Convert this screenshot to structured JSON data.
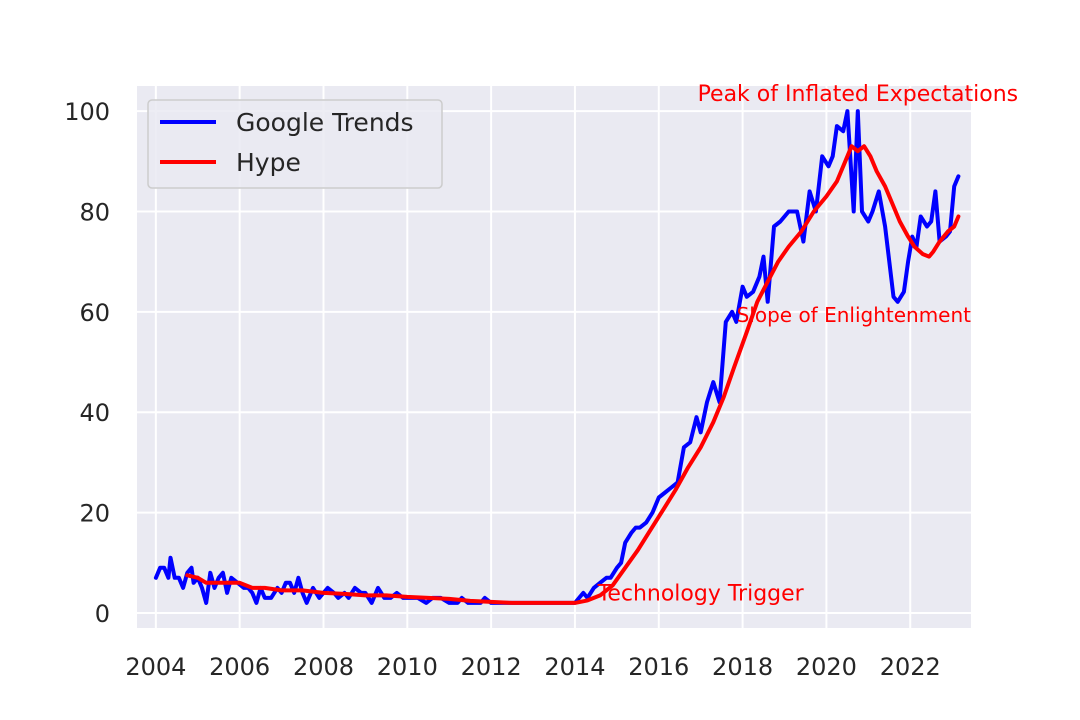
{
  "chart_data": {
    "type": "line",
    "title": "",
    "xlabel": "",
    "ylabel": "",
    "xlim": [
      2003.55,
      2023.45
    ],
    "ylim": [
      -3,
      105
    ],
    "xticks": [
      2004,
      2006,
      2008,
      2010,
      2012,
      2014,
      2016,
      2018,
      2020,
      2022
    ],
    "yticks": [
      0,
      20,
      40,
      60,
      80,
      100
    ],
    "grid": true,
    "legend_position": "upper-left",
    "series": [
      {
        "name": "Google Trends",
        "color": "#0000ff",
        "points": [
          [
            2004.0,
            7
          ],
          [
            2004.1,
            9
          ],
          [
            2004.2,
            9
          ],
          [
            2004.3,
            7
          ],
          [
            2004.35,
            11
          ],
          [
            2004.45,
            7
          ],
          [
            2004.55,
            7
          ],
          [
            2004.65,
            5
          ],
          [
            2004.75,
            8
          ],
          [
            2004.85,
            9
          ],
          [
            2004.9,
            6
          ],
          [
            2005.0,
            7
          ],
          [
            2005.1,
            5
          ],
          [
            2005.2,
            2
          ],
          [
            2005.3,
            8
          ],
          [
            2005.4,
            5
          ],
          [
            2005.5,
            7
          ],
          [
            2005.6,
            8
          ],
          [
            2005.7,
            4
          ],
          [
            2005.8,
            7
          ],
          [
            2005.95,
            6
          ],
          [
            2006.1,
            5
          ],
          [
            2006.2,
            5
          ],
          [
            2006.3,
            4
          ],
          [
            2006.4,
            2
          ],
          [
            2006.5,
            5
          ],
          [
            2006.6,
            3
          ],
          [
            2006.75,
            3
          ],
          [
            2006.9,
            5
          ],
          [
            2007.0,
            4
          ],
          [
            2007.1,
            6
          ],
          [
            2007.2,
            6
          ],
          [
            2007.3,
            4
          ],
          [
            2007.4,
            7
          ],
          [
            2007.5,
            4
          ],
          [
            2007.6,
            2
          ],
          [
            2007.75,
            5
          ],
          [
            2007.9,
            3
          ],
          [
            2008.0,
            4
          ],
          [
            2008.1,
            5
          ],
          [
            2008.25,
            4
          ],
          [
            2008.35,
            3
          ],
          [
            2008.5,
            4
          ],
          [
            2008.6,
            3
          ],
          [
            2008.75,
            5
          ],
          [
            2008.9,
            4
          ],
          [
            2009.0,
            4
          ],
          [
            2009.15,
            2
          ],
          [
            2009.3,
            5
          ],
          [
            2009.45,
            3
          ],
          [
            2009.6,
            3
          ],
          [
            2009.75,
            4
          ],
          [
            2009.9,
            3
          ],
          [
            2010.0,
            3
          ],
          [
            2010.25,
            3
          ],
          [
            2010.45,
            2
          ],
          [
            2010.6,
            3
          ],
          [
            2010.8,
            3
          ],
          [
            2011.0,
            2
          ],
          [
            2011.2,
            2
          ],
          [
            2011.3,
            3
          ],
          [
            2011.45,
            2
          ],
          [
            2011.6,
            2
          ],
          [
            2011.75,
            2
          ],
          [
            2011.85,
            3
          ],
          [
            2012.0,
            2
          ],
          [
            2012.5,
            2
          ],
          [
            2013.0,
            2
          ],
          [
            2013.5,
            2
          ],
          [
            2014.0,
            2
          ],
          [
            2014.1,
            3
          ],
          [
            2014.2,
            4
          ],
          [
            2014.3,
            3
          ],
          [
            2014.45,
            5
          ],
          [
            2014.6,
            6
          ],
          [
            2014.75,
            7
          ],
          [
            2014.85,
            7
          ],
          [
            2015.0,
            9
          ],
          [
            2015.1,
            10
          ],
          [
            2015.2,
            14
          ],
          [
            2015.35,
            16
          ],
          [
            2015.45,
            17
          ],
          [
            2015.55,
            17
          ],
          [
            2015.7,
            18
          ],
          [
            2015.85,
            20
          ],
          [
            2016.0,
            23
          ],
          [
            2016.15,
            24
          ],
          [
            2016.3,
            25
          ],
          [
            2016.45,
            26
          ],
          [
            2016.6,
            33
          ],
          [
            2016.75,
            34
          ],
          [
            2016.9,
            39
          ],
          [
            2017.0,
            36
          ],
          [
            2017.15,
            42
          ],
          [
            2017.3,
            46
          ],
          [
            2017.45,
            42
          ],
          [
            2017.6,
            58
          ],
          [
            2017.75,
            60
          ],
          [
            2017.85,
            58
          ],
          [
            2018.0,
            65
          ],
          [
            2018.1,
            63
          ],
          [
            2018.25,
            64
          ],
          [
            2018.4,
            67
          ],
          [
            2018.5,
            71
          ],
          [
            2018.6,
            62
          ],
          [
            2018.75,
            77
          ],
          [
            2018.9,
            78
          ],
          [
            2019.0,
            79
          ],
          [
            2019.1,
            80
          ],
          [
            2019.3,
            80
          ],
          [
            2019.45,
            74
          ],
          [
            2019.6,
            84
          ],
          [
            2019.75,
            80
          ],
          [
            2019.9,
            91
          ],
          [
            2020.05,
            89
          ],
          [
            2020.15,
            91
          ],
          [
            2020.25,
            97
          ],
          [
            2020.4,
            96
          ],
          [
            2020.5,
            100
          ],
          [
            2020.65,
            80
          ],
          [
            2020.75,
            100
          ],
          [
            2020.85,
            80
          ],
          [
            2021.0,
            78
          ],
          [
            2021.1,
            80
          ],
          [
            2021.25,
            84
          ],
          [
            2021.4,
            77
          ],
          [
            2021.5,
            70
          ],
          [
            2021.6,
            63
          ],
          [
            2021.7,
            62
          ],
          [
            2021.85,
            64
          ],
          [
            2021.95,
            70
          ],
          [
            2022.05,
            75
          ],
          [
            2022.15,
            73
          ],
          [
            2022.25,
            79
          ],
          [
            2022.4,
            77
          ],
          [
            2022.5,
            78
          ],
          [
            2022.6,
            84
          ],
          [
            2022.7,
            74
          ],
          [
            2022.85,
            75
          ],
          [
            2022.95,
            76
          ],
          [
            2023.05,
            85
          ],
          [
            2023.15,
            87
          ]
        ]
      },
      {
        "name": "Hype",
        "color": "#ff0000",
        "points": [
          [
            2004.75,
            7.5
          ],
          [
            2005.0,
            7
          ],
          [
            2005.2,
            6
          ],
          [
            2005.5,
            6
          ],
          [
            2005.8,
            6
          ],
          [
            2006.0,
            6
          ],
          [
            2006.3,
            5
          ],
          [
            2006.6,
            5
          ],
          [
            2007.0,
            4.5
          ],
          [
            2007.5,
            4.5
          ],
          [
            2008.0,
            4
          ],
          [
            2008.5,
            3.8
          ],
          [
            2009.0,
            3.5
          ],
          [
            2009.5,
            3.5
          ],
          [
            2010.0,
            3.2
          ],
          [
            2010.5,
            3
          ],
          [
            2011.0,
            2.8
          ],
          [
            2011.5,
            2.4
          ],
          [
            2012.0,
            2.2
          ],
          [
            2012.5,
            2
          ],
          [
            2013.0,
            2
          ],
          [
            2013.5,
            2
          ],
          [
            2014.0,
            2
          ],
          [
            2014.3,
            2.5
          ],
          [
            2014.6,
            3.5
          ],
          [
            2014.9,
            5.5
          ],
          [
            2015.2,
            9
          ],
          [
            2015.5,
            12.5
          ],
          [
            2015.8,
            16.5
          ],
          [
            2016.1,
            20.5
          ],
          [
            2016.4,
            24.5
          ],
          [
            2016.7,
            29
          ],
          [
            2017.0,
            33
          ],
          [
            2017.3,
            38
          ],
          [
            2017.55,
            43
          ],
          [
            2017.8,
            49
          ],
          [
            2018.1,
            56
          ],
          [
            2018.35,
            62
          ],
          [
            2018.6,
            66
          ],
          [
            2018.85,
            70
          ],
          [
            2019.1,
            73
          ],
          [
            2019.4,
            76
          ],
          [
            2019.7,
            80
          ],
          [
            2020.0,
            83
          ],
          [
            2020.25,
            86
          ],
          [
            2020.45,
            90
          ],
          [
            2020.6,
            93
          ],
          [
            2020.75,
            92
          ],
          [
            2020.9,
            93
          ],
          [
            2021.05,
            91
          ],
          [
            2021.2,
            88
          ],
          [
            2021.4,
            85
          ],
          [
            2021.55,
            82
          ],
          [
            2021.75,
            78
          ],
          [
            2021.95,
            75
          ],
          [
            2022.1,
            73
          ],
          [
            2022.3,
            71.5
          ],
          [
            2022.45,
            71
          ],
          [
            2022.55,
            72
          ],
          [
            2022.7,
            74
          ],
          [
            2022.9,
            76
          ],
          [
            2023.05,
            77
          ],
          [
            2023.15,
            79
          ]
        ]
      }
    ],
    "annotations": [
      {
        "text": "Peak of Inflated Expectations",
        "x": 2020.75,
        "y": 102
      },
      {
        "text": "Slope of Enlightenment",
        "x": 2023.45,
        "y": 58
      },
      {
        "text": "Technology Trigger",
        "x": 2017.0,
        "y": 2.5
      }
    ]
  }
}
